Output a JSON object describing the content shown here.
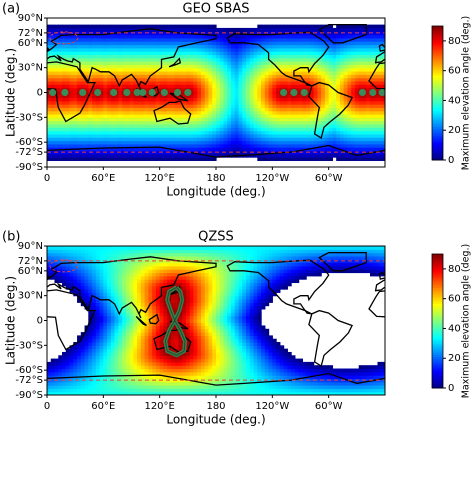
{
  "chart_data": [
    {
      "type": "heatmap",
      "panel_label": "(a)",
      "title": "GEO SBAS",
      "xlabel": "Longitude (deg.)",
      "ylabel": "Latitude (deg.)",
      "xlim": [
        0,
        360
      ],
      "xticks": [
        0,
        {
          "value": 60,
          "label": "60°E"
        },
        {
          "value": 120,
          "label": "120°E"
        },
        180,
        {
          "value": 240,
          "label": "120°W"
        },
        {
          "value": 300,
          "label": "60°W"
        }
      ],
      "ylim": [
        -90,
        90
      ],
      "yticks": [
        {
          "value": 90,
          "label": "90°N"
        },
        {
          "value": 72,
          "label": "72°N"
        },
        {
          "value": 60,
          "label": "60°N"
        },
        {
          "value": 30,
          "label": "30°N"
        },
        0,
        {
          "value": -30,
          "label": "-30°S"
        },
        {
          "value": -60,
          "label": "-60°S"
        },
        {
          "value": -72,
          "label": "-72°S"
        },
        {
          "value": -90,
          "label": "-90°S"
        }
      ],
      "colorbar": {
        "label": "Maximum elevation angle (deg.)",
        "lim": [
          0,
          90
        ],
        "ticks": [
          0,
          20,
          40,
          60,
          80
        ],
        "colormap": "jet"
      },
      "hlines": {
        "values": [
          72,
          -72
        ],
        "color": "#e8413c"
      },
      "satellites": {
        "x": [
          6,
          19,
          38,
          54,
          71,
          85,
          96,
          102,
          112,
          125,
          139,
          150,
          252,
          263,
          274,
          336,
          347,
          357
        ],
        "y": [
          0,
          0,
          0,
          0,
          0,
          0,
          0,
          0,
          0,
          0,
          0,
          0,
          0,
          0,
          0,
          0,
          0,
          0
        ],
        "color": "#3a8a5a"
      }
    },
    {
      "type": "heatmap",
      "panel_label": "(b)",
      "title": "QZSS",
      "xlabel": "Longitude (deg.)",
      "ylabel": "Latitude (deg.)",
      "xlim": [
        0,
        360
      ],
      "xticks": [
        0,
        {
          "value": 60,
          "label": "60°E"
        },
        {
          "value": 120,
          "label": "120°E"
        },
        180,
        {
          "value": 240,
          "label": "120°W"
        },
        {
          "value": 300,
          "label": "60°W"
        }
      ],
      "ylim": [
        -90,
        90
      ],
      "yticks": [
        {
          "value": 90,
          "label": "90°N"
        },
        {
          "value": 72,
          "label": "72°N"
        },
        {
          "value": 60,
          "label": "60°N"
        },
        {
          "value": 30,
          "label": "30°N"
        },
        0,
        {
          "value": -30,
          "label": "-30°S"
        },
        {
          "value": -60,
          "label": "-60°S"
        },
        {
          "value": -72,
          "label": "-72°S"
        },
        {
          "value": -90,
          "label": "-90°S"
        }
      ],
      "colorbar": {
        "label": "Maximum elevation angle (deg.)",
        "lim": [
          0,
          90
        ],
        "ticks": [
          0,
          20,
          40,
          60,
          80
        ],
        "colormap": "jet"
      },
      "hlines": {
        "values": [
          72,
          -72
        ],
        "color": "#e8413c"
      },
      "ground_track": {
        "x": [
          138,
          130,
          128,
          132,
          136,
          142,
          147,
          146,
          138,
          128,
          126,
          130,
          136,
          141,
          144,
          142,
          138
        ],
        "y": [
          40,
          35,
          25,
          12,
          0,
          -12,
          -25,
          -37,
          -42,
          -37,
          -25,
          -12,
          0,
          12,
          25,
          35,
          40
        ],
        "color": "#3a7a4a"
      }
    }
  ]
}
